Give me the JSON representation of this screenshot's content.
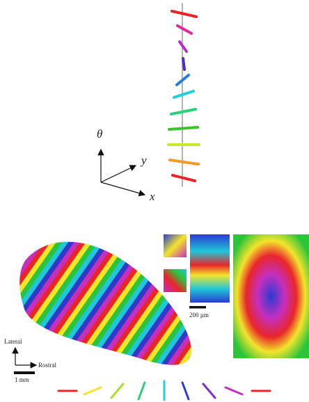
{
  "axes": {
    "theta": "θ",
    "y": "y",
    "x": "x"
  },
  "map": {
    "lateral": "Lateral",
    "rostral": "Rostral",
    "scale_large": "1 mm",
    "scale_small": "200 µm"
  }
}
